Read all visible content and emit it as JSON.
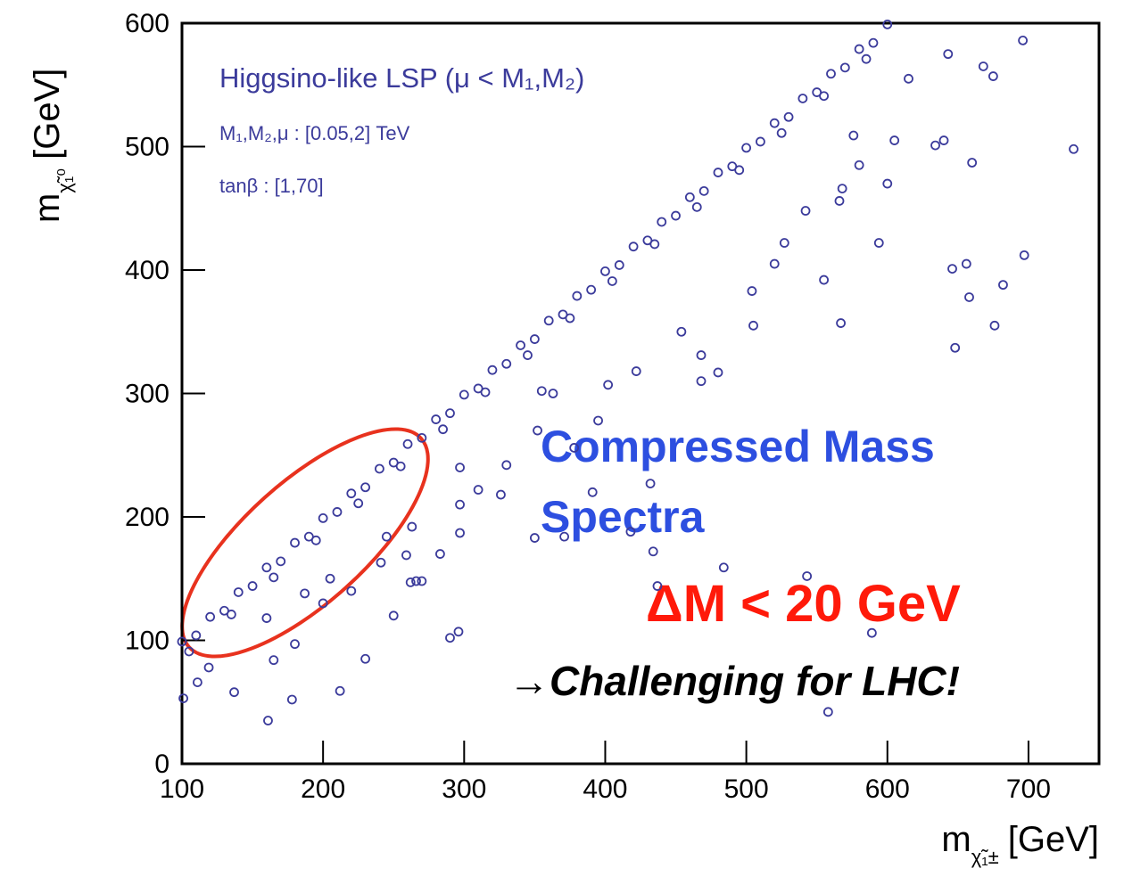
{
  "chart_data": {
    "type": "scatter",
    "color": "#3b3b9b",
    "xlim": [
      100,
      750
    ],
    "ylim": [
      0,
      600
    ],
    "xticks": [
      100,
      200,
      300,
      400,
      500,
      600,
      700
    ],
    "yticks": [
      0,
      100,
      200,
      300,
      400,
      500,
      600
    ],
    "xlabel": {
      "main": "m",
      "sub": "χ̃₁±",
      "unit": "[GeV]"
    },
    "ylabel": {
      "main": "m",
      "sub": "χ̃₁⁰",
      "unit": "[GeV]"
    },
    "annotations": {
      "model": "Higgsino-like LSP (μ < M₁,M₂)",
      "range": "M₁,M₂,μ : [0.05,2] TeV",
      "tanb": "tanβ : [1,70]",
      "compressed1": "Compressed Mass",
      "compressed2": "Spectra",
      "delta": "ΔM < 20 GeV",
      "challenge": "→Challenging for LHC!"
    },
    "x": [
      100,
      120,
      140,
      160,
      180,
      200,
      220,
      240,
      260,
      280,
      300,
      320,
      340,
      360,
      380,
      400,
      420,
      440,
      460,
      480,
      500,
      520,
      540,
      560,
      580,
      600,
      110,
      130,
      150,
      170,
      190,
      210,
      230,
      250,
      270,
      290,
      310,
      330,
      350,
      370,
      390,
      410,
      430,
      450,
      470,
      490,
      510,
      530,
      550,
      570,
      590,
      105,
      135,
      165,
      195,
      225,
      255,
      285,
      315,
      345,
      375,
      405,
      435,
      465,
      495,
      525,
      555,
      585,
      732,
      696,
      675,
      643,
      668,
      615,
      640,
      634,
      660,
      605,
      576,
      600,
      580,
      568,
      566,
      542,
      527,
      594,
      656,
      646,
      658,
      682,
      676,
      648,
      697,
      555,
      567,
      520,
      504,
      505,
      454,
      468,
      480,
      468,
      391,
      432,
      350,
      371,
      418,
      434,
      484,
      437,
      543,
      589,
      558,
      241,
      259,
      266,
      270,
      262,
      290,
      296,
      283,
      297,
      230,
      212,
      178,
      161,
      165,
      180,
      137,
      101,
      119,
      111,
      160,
      200,
      220,
      250,
      205,
      187,
      263,
      245,
      297,
      297,
      310,
      326,
      330,
      363,
      352,
      378,
      395,
      402,
      422,
      355
    ],
    "values": [
      99,
      119,
      139,
      159,
      179,
      199,
      219,
      239,
      259,
      279,
      299,
      319,
      339,
      359,
      379,
      399,
      419,
      439,
      459,
      479,
      499,
      519,
      539,
      559,
      579,
      599,
      104,
      124,
      144,
      164,
      184,
      204,
      224,
      244,
      264,
      284,
      304,
      324,
      344,
      364,
      384,
      404,
      424,
      444,
      464,
      484,
      504,
      524,
      544,
      564,
      584,
      91,
      121,
      151,
      181,
      211,
      241,
      271,
      301,
      331,
      361,
      391,
      421,
      451,
      481,
      511,
      541,
      571,
      498,
      586,
      557,
      575,
      565,
      555,
      505,
      501,
      487,
      505,
      509,
      470,
      485,
      466,
      456,
      448,
      422,
      422,
      405,
      401,
      378,
      388,
      355,
      337,
      412,
      392,
      357,
      405,
      383,
      355,
      350,
      331,
      317,
      310,
      220,
      227,
      183,
      184,
      188,
      172,
      159,
      144,
      152,
      106,
      42,
      163,
      169,
      148,
      148,
      147,
      102,
      107,
      170,
      187,
      85,
      59,
      52,
      35,
      84,
      97,
      58,
      53,
      78,
      66,
      118,
      130,
      140,
      120,
      150,
      138,
      192,
      184,
      240,
      210,
      222,
      218,
      242,
      300,
      270,
      256,
      278,
      307,
      318,
      302
    ]
  }
}
